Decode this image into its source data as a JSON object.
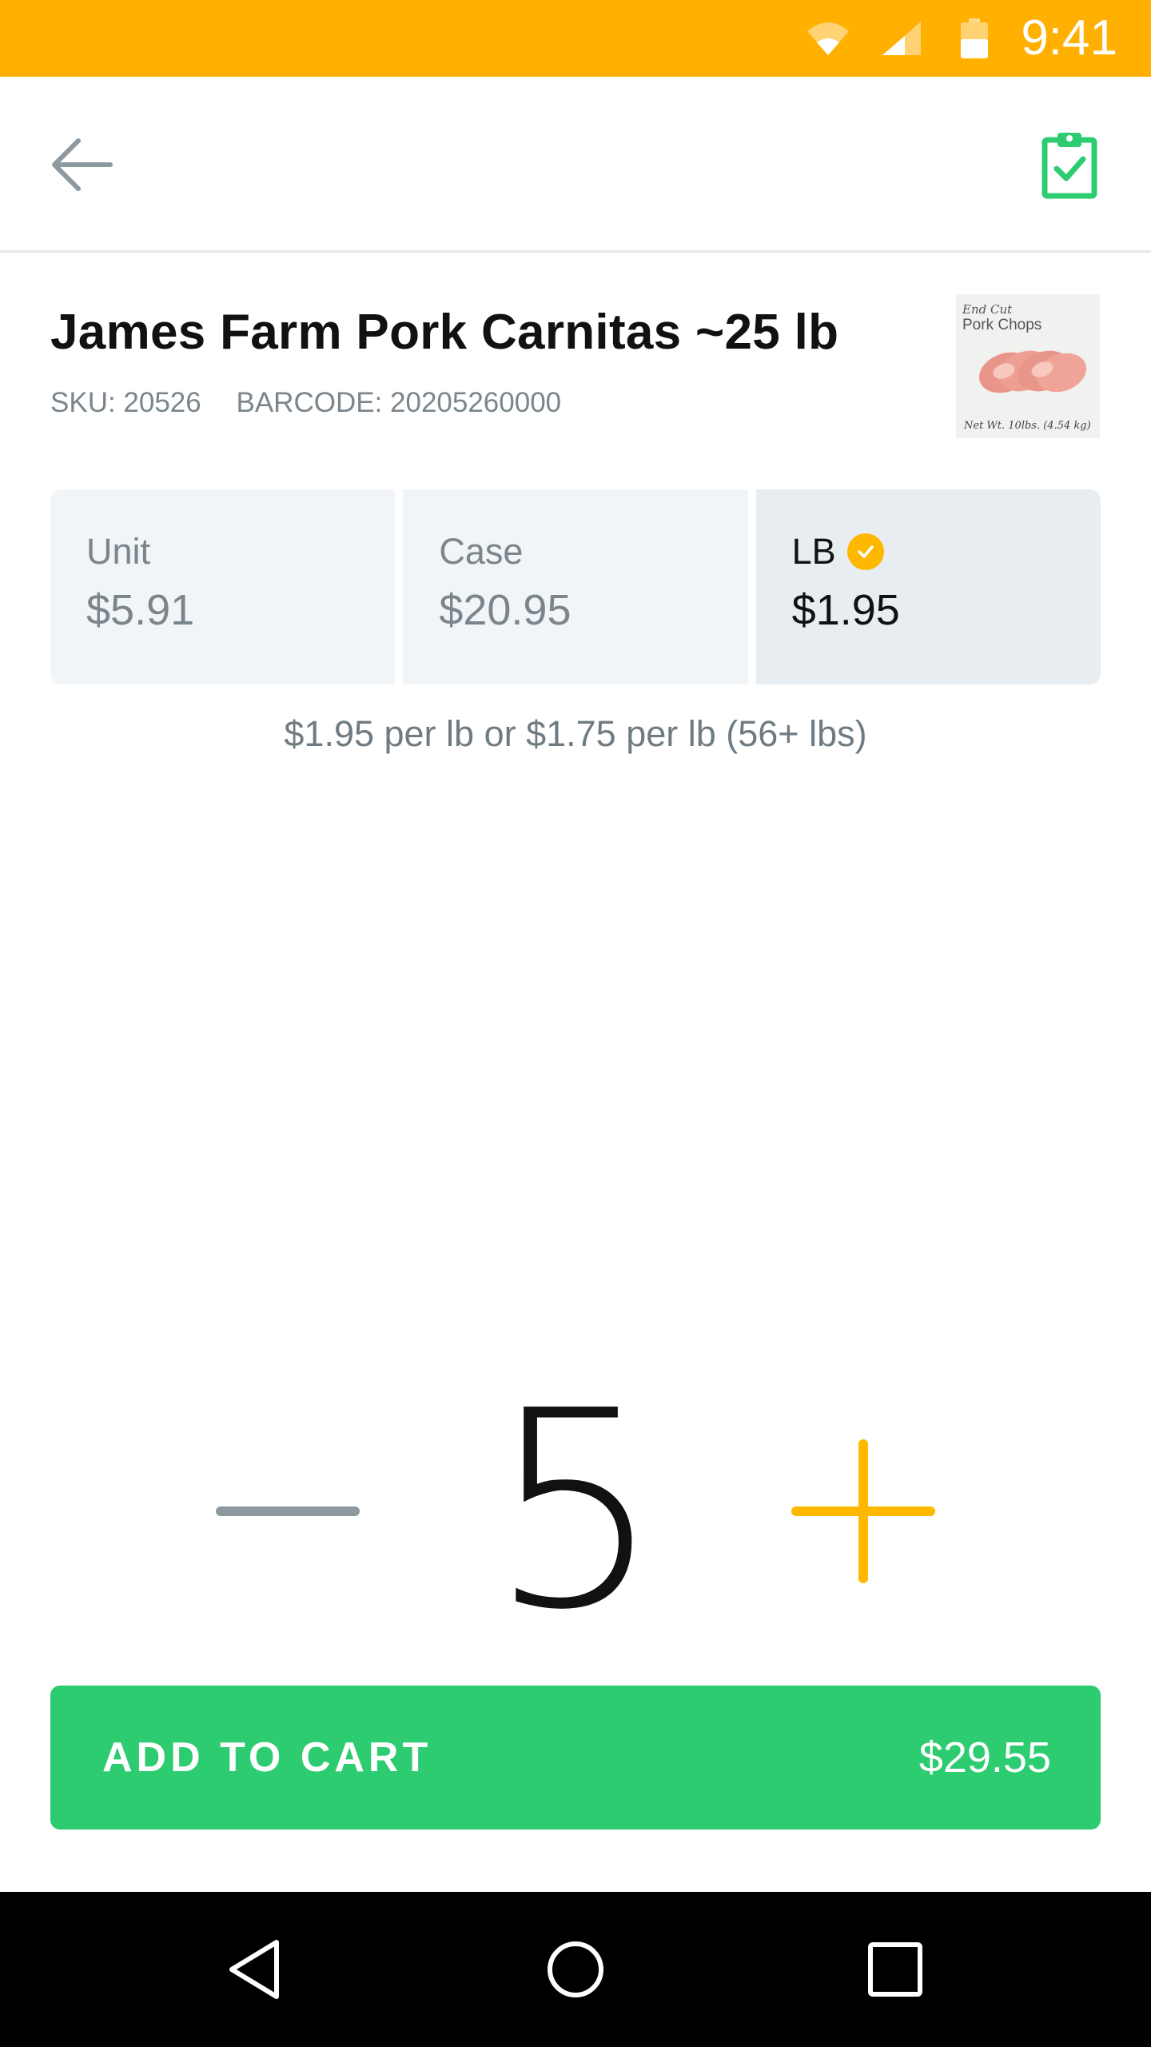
{
  "status_bar": {
    "time": "9:41",
    "background_color": "#FFB000",
    "icons": [
      "wifi-icon",
      "cell-signal-icon",
      "battery-icon"
    ]
  },
  "app_bar": {
    "back_icon": "arrow-left-icon",
    "action_icon": "clipboard-check-icon",
    "action_color": "#2ECC71"
  },
  "product": {
    "title": "James Farm Pork Carnitas ~25 lb",
    "sku": "SKU: 20526",
    "barcode": "BARCODE: 20205260000",
    "thumbnail": {
      "line1": "End Cut",
      "line2": "Pork Chops",
      "line3": "Net Wt. 10lbs. (4.54 kg)"
    }
  },
  "price_options": [
    {
      "label": "Unit",
      "price": "$5.91",
      "selected": false
    },
    {
      "label": "Case",
      "price": "$20.95",
      "selected": false
    },
    {
      "label": "LB",
      "price": "$1.95",
      "selected": true
    }
  ],
  "price_note": "$1.95 per lb or $1.75 per lb (56+ lbs)",
  "quantity": {
    "value": "5",
    "minus_color": "#8E999F",
    "plus_color": "#FFB800"
  },
  "add_to_cart": {
    "label": "ADD TO CART",
    "total": "$29.55",
    "color": "#2ECC71"
  },
  "nav_bar": {
    "icons": [
      "nav-back-icon",
      "nav-home-icon",
      "nav-recents-icon"
    ]
  }
}
